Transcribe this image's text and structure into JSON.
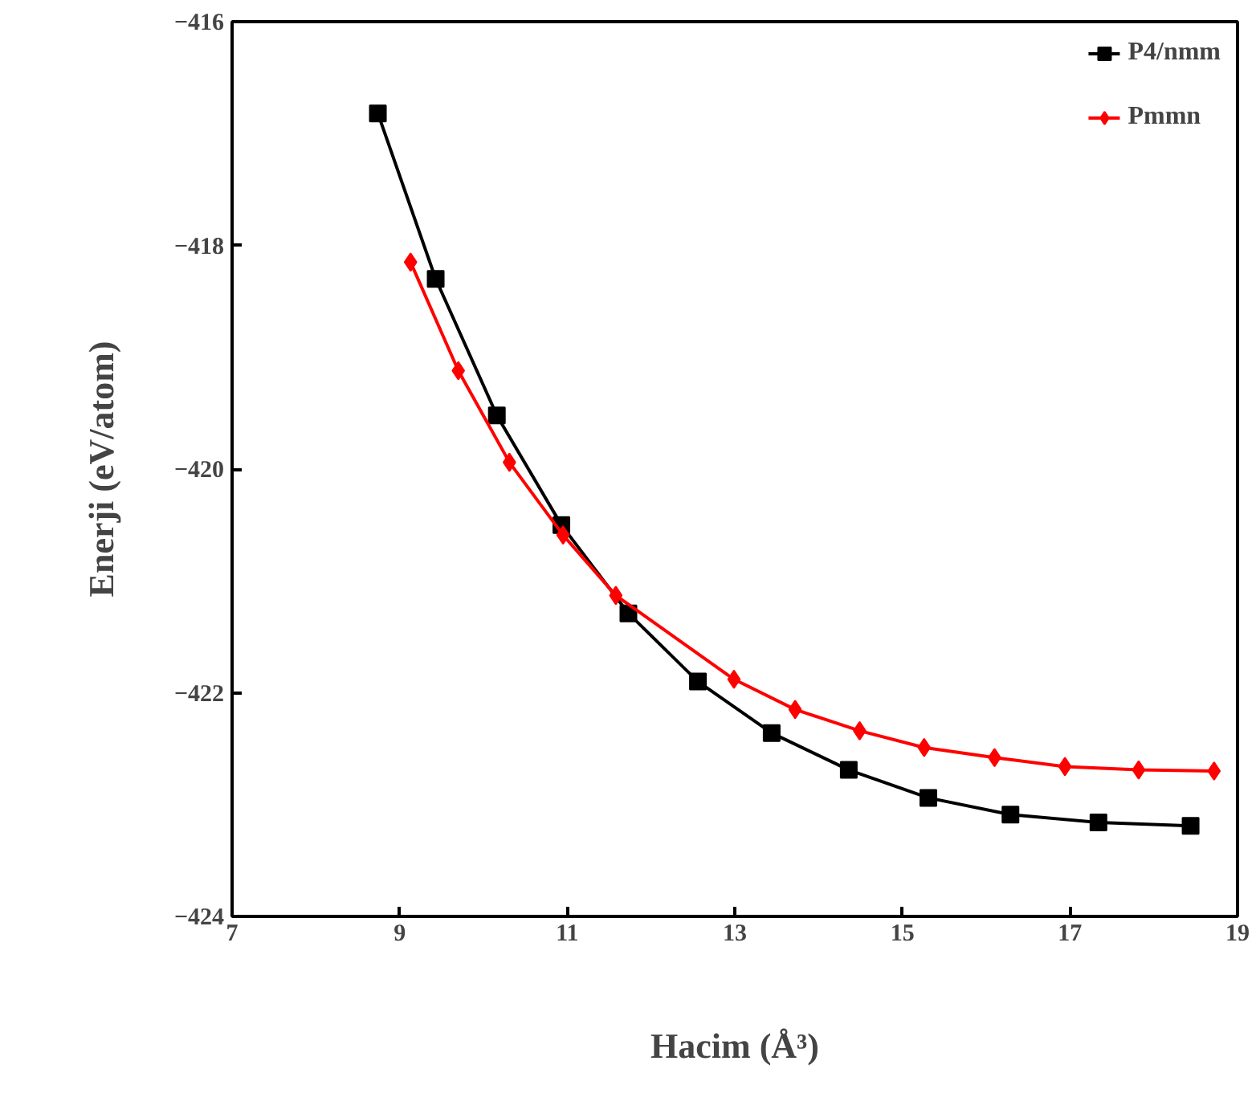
{
  "chart_data": {
    "type": "line",
    "xlabel": "Hacim (Å³)",
    "ylabel": "Enerji (eV/atom)",
    "xlim": [
      7,
      19
    ],
    "ylim": [
      -424,
      -416
    ],
    "xticks": [
      7,
      9,
      11,
      13,
      15,
      17,
      19
    ],
    "yticks": [
      -424,
      -422,
      -420,
      -418,
      -416
    ],
    "grid": false,
    "legend": "top right",
    "line_style": "solid",
    "series": [
      {
        "name": "P4/nmm",
        "color": "#000000",
        "marker": "square",
        "x": [
          8.74,
          9.43,
          10.16,
          10.93,
          11.73,
          12.56,
          13.44,
          14.36,
          15.31,
          16.29,
          17.34,
          18.44
        ],
        "values": [
          -416.82,
          -418.3,
          -419.52,
          -420.5,
          -421.29,
          -421.9,
          -422.36,
          -422.69,
          -422.94,
          -423.09,
          -423.16,
          -423.19
        ]
      },
      {
        "name": "Pmmn",
        "color": "#ff0000",
        "marker": "diamond",
        "x": [
          9.13,
          9.7,
          10.31,
          10.95,
          11.58,
          12.99,
          13.72,
          14.49,
          15.26,
          16.1,
          16.94,
          17.82,
          18.72
        ],
        "values": [
          -418.15,
          -419.12,
          -419.94,
          -420.59,
          -421.13,
          -421.88,
          -422.15,
          -422.34,
          -422.49,
          -422.58,
          -422.66,
          -422.69,
          -422.7
        ]
      }
    ]
  }
}
